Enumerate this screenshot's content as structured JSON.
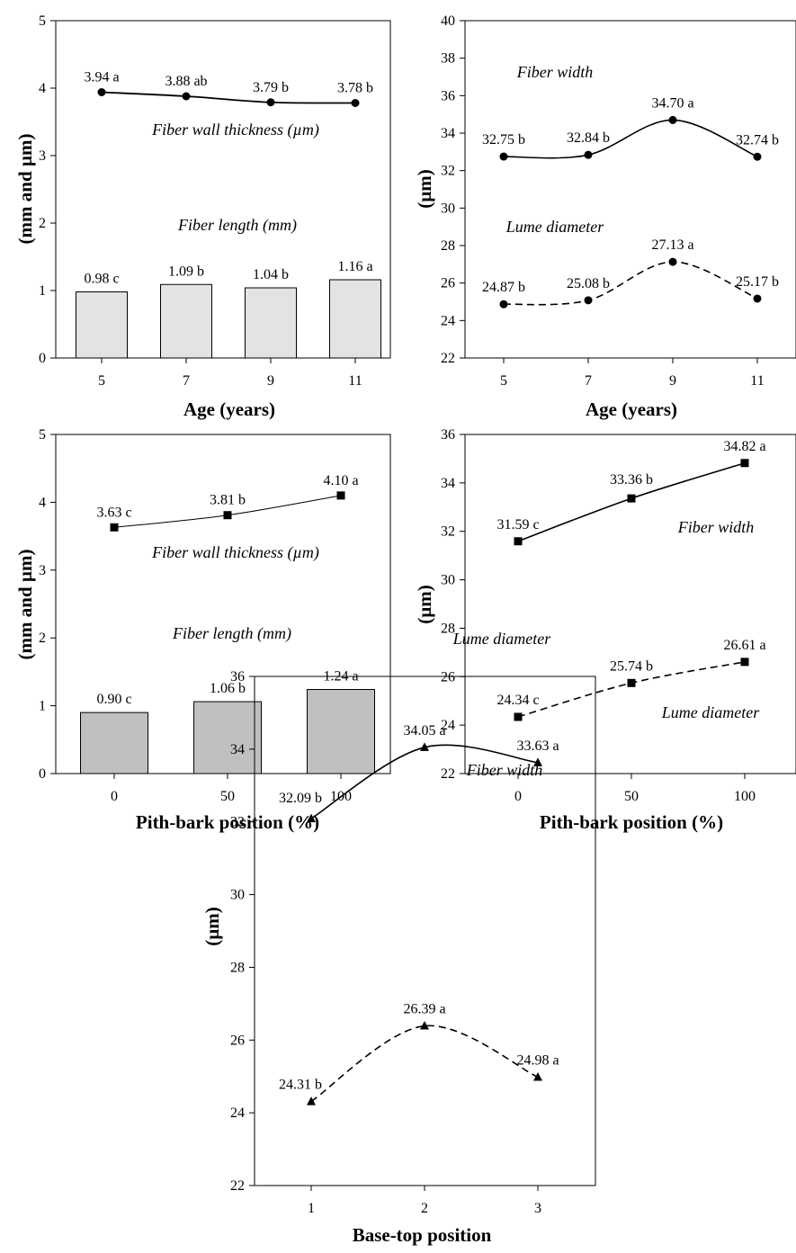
{
  "chart_data": [
    {
      "type": "bar",
      "xlabel": "Age (years)",
      "ylabel": "(mm and µm)",
      "ylim": [
        0,
        5
      ],
      "y_ticks": [
        "0",
        "1",
        "2",
        "3",
        "4",
        "5"
      ],
      "categories": [
        "5",
        "7",
        "9",
        "11"
      ],
      "bar_series": {
        "name": "Fiber length (mm)",
        "values": [
          0.98,
          1.09,
          1.04,
          1.16
        ],
        "labels": [
          "0.98 c",
          "1.09 b",
          "1.04 b",
          "1.16 a"
        ],
        "color": "#e3e3e3"
      },
      "line_series": {
        "name": "Fiber wall thickness (µm)",
        "values": [
          3.94,
          3.88,
          3.79,
          3.78
        ],
        "labels": [
          "3.94 a",
          "3.88 ab",
          "3.79 b",
          "3.78 b"
        ],
        "marker": "circle"
      }
    },
    {
      "type": "line",
      "xlabel": "Age (years)",
      "ylabel": "(µm)",
      "ylim": [
        22,
        40
      ],
      "y_ticks": [
        "22",
        "24",
        "26",
        "28",
        "30",
        "32",
        "34",
        "36",
        "38",
        "40"
      ],
      "x": [
        "5",
        "7",
        "9",
        "11"
      ],
      "series": [
        {
          "name": "Fiber width",
          "values": [
            32.75,
            32.84,
            34.7,
            32.74
          ],
          "labels": [
            "32.75 b",
            "32.84 b",
            "34.70 a",
            "32.74 b"
          ],
          "dash": false,
          "marker": "circle"
        },
        {
          "name": "Lume diameter",
          "values": [
            24.87,
            25.08,
            27.13,
            25.17
          ],
          "labels": [
            "24.87 b",
            "25.08 b",
            "27.13 a",
            "25.17 b"
          ],
          "dash": true,
          "marker": "circle"
        }
      ]
    },
    {
      "type": "bar",
      "xlabel": "Pith-bark position (%)",
      "ylabel": "(mm and µm)",
      "ylim": [
        0,
        5
      ],
      "y_ticks": [
        "0",
        "1",
        "2",
        "3",
        "4",
        "5"
      ],
      "categories": [
        "0",
        "50",
        "100"
      ],
      "bar_series": {
        "name": "Fiber length (mm)",
        "values": [
          0.9,
          1.06,
          1.24
        ],
        "labels": [
          "0.90 c",
          "1.06 b",
          "1.24 a"
        ],
        "color": "#c0c0c0"
      },
      "line_series": {
        "name": "Fiber wall thickness (µm)",
        "values": [
          3.63,
          3.81,
          4.1
        ],
        "labels": [
          "3.63 c",
          "3.81 b",
          "4.10 a"
        ],
        "marker": "square"
      }
    },
    {
      "type": "line",
      "xlabel": "Pith-bark position (%)",
      "ylabel": "(µm)",
      "ylim": [
        22,
        36
      ],
      "y_ticks": [
        "22",
        "24",
        "26",
        "28",
        "30",
        "32",
        "34",
        "36"
      ],
      "x": [
        "0",
        "50",
        "100"
      ],
      "series": [
        {
          "name": "Fiber width",
          "values": [
            31.59,
            33.36,
            34.82
          ],
          "labels": [
            "31.59 c",
            "33.36 b",
            "34.82 a"
          ],
          "dash": false,
          "marker": "square"
        },
        {
          "name": "Lume diameter",
          "values": [
            24.34,
            25.74,
            26.61
          ],
          "labels": [
            "24.34 c",
            "25.74 b",
            "26.61 a"
          ],
          "dash": true,
          "marker": "square"
        }
      ]
    },
    {
      "type": "line",
      "xlabel": "Base-top position",
      "ylabel": "(µm)",
      "ylim": [
        22,
        36
      ],
      "y_ticks": [
        "22",
        "24",
        "26",
        "28",
        "30",
        "32",
        "34",
        "36"
      ],
      "x": [
        "1",
        "2",
        "3"
      ],
      "series": [
        {
          "name": "Fiber width",
          "values": [
            32.09,
            34.05,
            33.63
          ],
          "labels": [
            "32.09 b",
            "34.05 a",
            "33.63 a"
          ],
          "dash": false,
          "marker": "triangle"
        },
        {
          "name": "Lume diameter",
          "values": [
            24.31,
            26.39,
            24.98
          ],
          "labels": [
            "24.31 b",
            "26.39 a",
            "24.98 a"
          ],
          "dash": true,
          "marker": "triangle"
        }
      ]
    }
  ]
}
